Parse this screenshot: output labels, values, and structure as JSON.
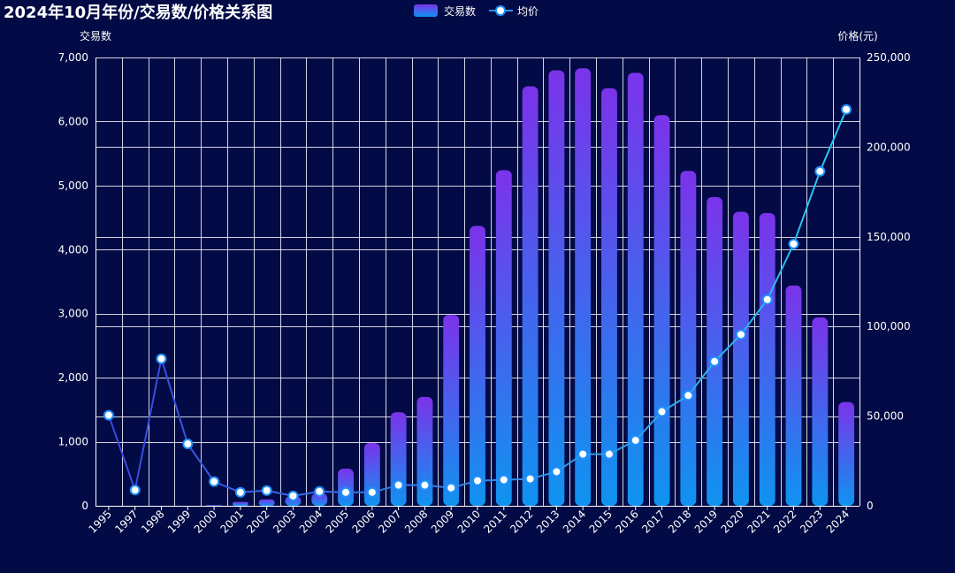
{
  "chart_data": {
    "type": "bar",
    "title": "2024年10月年份/交易数/价格关系图",
    "legend": {
      "placement": "top-center",
      "items": [
        "交易数",
        "均价"
      ]
    },
    "grid": true,
    "categories": [
      "1995",
      "1997",
      "1998",
      "1999",
      "2000",
      "2001",
      "2002",
      "2003",
      "2004",
      "2005",
      "2006",
      "2007",
      "2008",
      "2009",
      "2010",
      "2011",
      "2012",
      "2013",
      "2014",
      "2015",
      "2016",
      "2017",
      "2018",
      "2019",
      "2020",
      "2021",
      "2022",
      "2023",
      "2024"
    ],
    "y_left": {
      "label": "交易数",
      "range": [
        0,
        7000
      ],
      "ticks": [
        0,
        1000,
        2000,
        3000,
        4000,
        5000,
        6000,
        7000
      ],
      "tick_labels": [
        "0",
        "1,000",
        "2,000",
        "3,000",
        "4,000",
        "5,000",
        "6,000",
        "7,000"
      ]
    },
    "y_right": {
      "label": "价格(元)",
      "range": [
        0,
        250000
      ],
      "ticks": [
        0,
        50000,
        100000,
        150000,
        200000,
        250000
      ],
      "tick_labels": [
        "0",
        "50,000",
        "100,000",
        "150,000",
        "200,000",
        "250,000"
      ]
    },
    "series": [
      {
        "name": "交易数",
        "type": "bar",
        "axis": "left",
        "colors": {
          "top": "#7b33ea",
          "bottom": "#0f93f0"
        },
        "values": [
          0,
          0,
          0,
          0,
          10,
          60,
          100,
          150,
          200,
          580,
          980,
          1460,
          1700,
          2980,
          4370,
          5240,
          6550,
          6800,
          6830,
          6520,
          6760,
          6100,
          5230,
          4820,
          4590,
          4570,
          3440,
          2940,
          1620
        ]
      },
      {
        "name": "均价",
        "type": "line",
        "axis": "right",
        "colors": {
          "start": "#3a45e0",
          "end": "#28c8f0",
          "marker_fill": "#ffffff",
          "marker_stroke": "#1e90ff"
        },
        "values": [
          50500,
          8800,
          82000,
          34500,
          13500,
          7500,
          8500,
          5500,
          8000,
          7500,
          7500,
          11500,
          11500,
          10000,
          14000,
          14500,
          15000,
          19000,
          28800,
          28800,
          36500,
          52500,
          61500,
          80500,
          95500,
          115000,
          146000,
          186500,
          221000
        ]
      }
    ]
  }
}
